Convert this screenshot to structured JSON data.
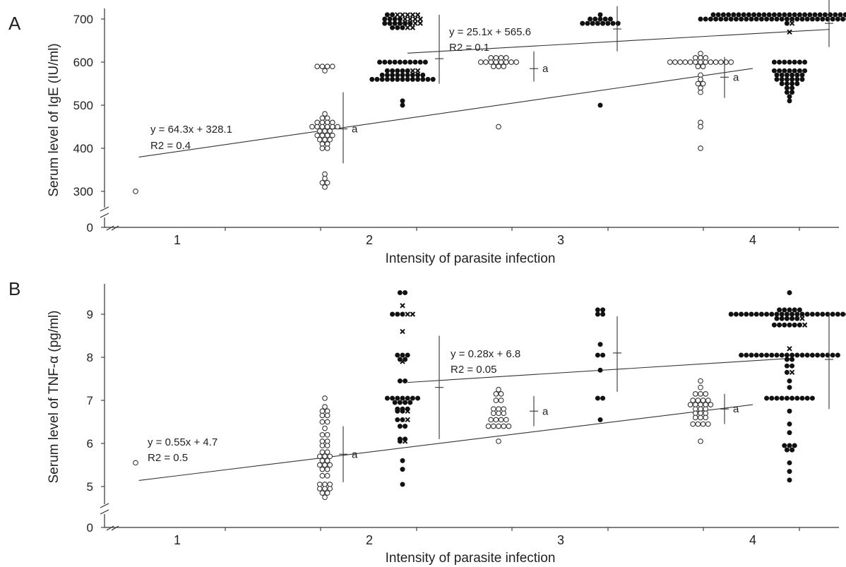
{
  "chart_data": [
    {
      "panel_label": "A",
      "type": "scatter",
      "xlabel": "Intensity of parasite infection",
      "ylabel": "Serum level of IgE (IU/ml)",
      "x_ticks": [
        "1",
        "2",
        "3",
        "4"
      ],
      "y_ticks": [
        "0",
        "300",
        "400",
        "500",
        "600",
        "700"
      ],
      "axis_break": true,
      "open_points": [
        {
          "group": 1,
          "value": 300,
          "count": 1
        },
        {
          "group": 2,
          "value": 590,
          "count": 4
        },
        {
          "group": 2,
          "value": 580,
          "count": 1
        },
        {
          "group": 2,
          "value": 480,
          "count": 1
        },
        {
          "group": 2,
          "value": 470,
          "count": 2
        },
        {
          "group": 2,
          "value": 460,
          "count": 4
        },
        {
          "group": 2,
          "value": 450,
          "count": 6
        },
        {
          "group": 2,
          "value": 440,
          "count": 3
        },
        {
          "group": 2,
          "value": 430,
          "count": 4
        },
        {
          "group": 2,
          "value": 420,
          "count": 3
        },
        {
          "group": 2,
          "value": 410,
          "count": 2
        },
        {
          "group": 2,
          "value": 400,
          "count": 2
        },
        {
          "group": 2,
          "value": 340,
          "count": 1
        },
        {
          "group": 2,
          "value": 330,
          "count": 1
        },
        {
          "group": 2,
          "value": 320,
          "count": 2
        },
        {
          "group": 2,
          "value": 310,
          "count": 1
        },
        {
          "group": 3,
          "value": 610,
          "count": 4
        },
        {
          "group": 3,
          "value": 600,
          "count": 8
        },
        {
          "group": 3,
          "value": 590,
          "count": 3
        },
        {
          "group": 3,
          "value": 450,
          "count": 1
        },
        {
          "group": 4,
          "value": 620,
          "count": 1
        },
        {
          "group": 4,
          "value": 610,
          "count": 3
        },
        {
          "group": 4,
          "value": 600,
          "count": 13
        },
        {
          "group": 4,
          "value": 590,
          "count": 2
        },
        {
          "group": 4,
          "value": 570,
          "count": 1
        },
        {
          "group": 4,
          "value": 560,
          "count": 1
        },
        {
          "group": 4,
          "value": 550,
          "count": 2
        },
        {
          "group": 4,
          "value": 540,
          "count": 1
        },
        {
          "group": 4,
          "value": 530,
          "count": 1
        },
        {
          "group": 4,
          "value": 460,
          "count": 1
        },
        {
          "group": 4,
          "value": 450,
          "count": 1
        },
        {
          "group": 4,
          "value": 400,
          "count": 1
        }
      ],
      "filled_points": [
        {
          "group": 2,
          "value": 710,
          "count": 7,
          "cross": 5
        },
        {
          "group": 2,
          "value": 700,
          "count": 8,
          "cross": 4
        },
        {
          "group": 2,
          "value": 690,
          "count": 8,
          "cross": 2
        },
        {
          "group": 2,
          "value": 680,
          "count": 5,
          "cross": 2
        },
        {
          "group": 2,
          "value": 600,
          "count": 10
        },
        {
          "group": 2,
          "value": 580,
          "count": 7,
          "cross": 2
        },
        {
          "group": 2,
          "value": 570,
          "count": 9
        },
        {
          "group": 2,
          "value": 560,
          "count": 13
        },
        {
          "group": 2,
          "value": 510,
          "count": 1
        },
        {
          "group": 2,
          "value": 500,
          "count": 1
        },
        {
          "group": 3,
          "value": 710,
          "count": 1
        },
        {
          "group": 3,
          "value": 700,
          "count": 5
        },
        {
          "group": 3,
          "value": 690,
          "count": 8
        },
        {
          "group": 3,
          "value": 500,
          "count": 1
        },
        {
          "group": 4,
          "value": 710,
          "count": 31,
          "cross": 4
        },
        {
          "group": 4,
          "value": 700,
          "count": 36
        },
        {
          "group": 4,
          "value": 690,
          "count": 2,
          "cross": 1
        },
        {
          "group": 4,
          "value": 670,
          "count": 1,
          "cross": 1
        },
        {
          "group": 4,
          "value": 600,
          "count": 7
        },
        {
          "group": 4,
          "value": 580,
          "count": 7
        },
        {
          "group": 4,
          "value": 570,
          "count": 6
        },
        {
          "group": 4,
          "value": 560,
          "count": 6
        },
        {
          "group": 4,
          "value": 550,
          "count": 4
        },
        {
          "group": 4,
          "value": 540,
          "count": 2
        },
        {
          "group": 4,
          "value": 530,
          "count": 2
        },
        {
          "group": 4,
          "value": 520,
          "count": 1
        },
        {
          "group": 4,
          "value": 510,
          "count": 1
        }
      ],
      "summary_bars": [
        {
          "group": 2,
          "series": "open",
          "mean": 445,
          "low": 365,
          "high": 530,
          "label": "a"
        },
        {
          "group": 2,
          "series": "filled",
          "mean": 608,
          "low": 550,
          "high": 710,
          "label": ""
        },
        {
          "group": 3,
          "series": "open",
          "mean": 585,
          "low": 555,
          "high": 625,
          "label": "a"
        },
        {
          "group": 3,
          "series": "filled",
          "mean": 677,
          "low": 625,
          "high": 730,
          "label": ""
        },
        {
          "group": 4,
          "series": "open",
          "mean": 565,
          "low": 517,
          "high": 612,
          "label": "a"
        },
        {
          "group": 4,
          "series": "filled",
          "mean": 690,
          "low": 635,
          "high": 745,
          "label": ""
        }
      ],
      "regression": [
        {
          "series": "open",
          "equation": "y = 64.3x + 328.1",
          "r2": "R2 = 0.4",
          "r2_value": 0.4,
          "slope": 64.3,
          "intercept": 328.1,
          "x_from": 0.8,
          "x_to": 4.0
        },
        {
          "series": "filled",
          "equation": "y = 25.1x + 565.6",
          "r2": "R2 = 0.1",
          "r2_value": 0.1,
          "slope": 25.1,
          "intercept": 565.6,
          "x_from": 2.2,
          "x_to": 4.4
        }
      ]
    },
    {
      "panel_label": "B",
      "type": "scatter",
      "xlabel": "Intensity of parasite infection",
      "ylabel": "Serum level of TNF-α (pg/ml)",
      "x_ticks": [
        "1",
        "2",
        "3",
        "4"
      ],
      "y_ticks": [
        "0",
        "5",
        "6",
        "7",
        "8",
        "9"
      ],
      "axis_break": true,
      "open_points": [
        {
          "group": 1,
          "value": 5.55,
          "count": 1
        },
        {
          "group": 2,
          "value": 7.05,
          "count": 1
        },
        {
          "group": 2,
          "value": 6.85,
          "count": 1
        },
        {
          "group": 2,
          "value": 6.75,
          "count": 2
        },
        {
          "group": 2,
          "value": 6.65,
          "count": 2
        },
        {
          "group": 2,
          "value": 6.5,
          "count": 2
        },
        {
          "group": 2,
          "value": 6.35,
          "count": 1
        },
        {
          "group": 2,
          "value": 6.2,
          "count": 2
        },
        {
          "group": 2,
          "value": 6.05,
          "count": 2
        },
        {
          "group": 2,
          "value": 5.95,
          "count": 2
        },
        {
          "group": 2,
          "value": 5.8,
          "count": 2
        },
        {
          "group": 2,
          "value": 5.7,
          "count": 3
        },
        {
          "group": 2,
          "value": 5.6,
          "count": 2
        },
        {
          "group": 2,
          "value": 5.5,
          "count": 3
        },
        {
          "group": 2,
          "value": 5.4,
          "count": 2
        },
        {
          "group": 2,
          "value": 5.25,
          "count": 2
        },
        {
          "group": 2,
          "value": 5.05,
          "count": 3
        },
        {
          "group": 2,
          "value": 4.95,
          "count": 3
        },
        {
          "group": 2,
          "value": 4.85,
          "count": 2
        },
        {
          "group": 2,
          "value": 4.75,
          "count": 1
        },
        {
          "group": 3,
          "value": 7.25,
          "count": 1
        },
        {
          "group": 3,
          "value": 7.15,
          "count": 2
        },
        {
          "group": 3,
          "value": 7.0,
          "count": 2
        },
        {
          "group": 3,
          "value": 6.8,
          "count": 3
        },
        {
          "group": 3,
          "value": 6.7,
          "count": 3
        },
        {
          "group": 3,
          "value": 6.55,
          "count": 4
        },
        {
          "group": 3,
          "value": 6.4,
          "count": 5
        },
        {
          "group": 3,
          "value": 6.05,
          "count": 1
        },
        {
          "group": 4,
          "value": 7.45,
          "count": 1
        },
        {
          "group": 4,
          "value": 7.3,
          "count": 1
        },
        {
          "group": 4,
          "value": 7.15,
          "count": 3
        },
        {
          "group": 4,
          "value": 7.0,
          "count": 4
        },
        {
          "group": 4,
          "value": 6.9,
          "count": 5
        },
        {
          "group": 4,
          "value": 6.8,
          "count": 3
        },
        {
          "group": 4,
          "value": 6.7,
          "count": 3
        },
        {
          "group": 4,
          "value": 6.6,
          "count": 3
        },
        {
          "group": 4,
          "value": 6.45,
          "count": 4
        },
        {
          "group": 4,
          "value": 6.05,
          "count": 1
        }
      ],
      "filled_points": [
        {
          "group": 2,
          "value": 9.5,
          "count": 2
        },
        {
          "group": 2,
          "value": 9.2,
          "count": 1,
          "cross": 1
        },
        {
          "group": 2,
          "value": 9.0,
          "count": 5,
          "cross": 2
        },
        {
          "group": 2,
          "value": 8.6,
          "count": 1,
          "cross": 1
        },
        {
          "group": 2,
          "value": 8.05,
          "count": 3
        },
        {
          "group": 2,
          "value": 7.95,
          "count": 2
        },
        {
          "group": 2,
          "value": 7.9,
          "count": 1,
          "cross": 1
        },
        {
          "group": 2,
          "value": 7.45,
          "count": 2
        },
        {
          "group": 2,
          "value": 7.05,
          "count": 7
        },
        {
          "group": 2,
          "value": 6.95,
          "count": 4
        },
        {
          "group": 2,
          "value": 6.8,
          "count": 3
        },
        {
          "group": 2,
          "value": 6.75,
          "count": 3,
          "cross": 1
        },
        {
          "group": 2,
          "value": 6.55,
          "count": 3,
          "cross": 1
        },
        {
          "group": 2,
          "value": 6.4,
          "count": 2
        },
        {
          "group": 2,
          "value": 6.1,
          "count": 2
        },
        {
          "group": 2,
          "value": 6.05,
          "count": 2,
          "cross": 1
        },
        {
          "group": 2,
          "value": 5.6,
          "count": 1
        },
        {
          "group": 2,
          "value": 5.4,
          "count": 1
        },
        {
          "group": 2,
          "value": 5.05,
          "count": 1
        },
        {
          "group": 3,
          "value": 9.1,
          "count": 2
        },
        {
          "group": 3,
          "value": 9.0,
          "count": 2
        },
        {
          "group": 3,
          "value": 8.3,
          "count": 1
        },
        {
          "group": 3,
          "value": 8.05,
          "count": 2
        },
        {
          "group": 3,
          "value": 7.7,
          "count": 1
        },
        {
          "group": 3,
          "value": 7.05,
          "count": 2
        },
        {
          "group": 3,
          "value": 6.55,
          "count": 1
        },
        {
          "group": 4,
          "value": 9.5,
          "count": 1
        },
        {
          "group": 4,
          "value": 9.1,
          "count": 5
        },
        {
          "group": 4,
          "value": 9.0,
          "count": 24
        },
        {
          "group": 4,
          "value": 8.9,
          "count": 6,
          "cross": 1
        },
        {
          "group": 4,
          "value": 8.75,
          "count": 7,
          "cross": 1
        },
        {
          "group": 4,
          "value": 8.2,
          "count": 1,
          "cross": 1
        },
        {
          "group": 4,
          "value": 8.05,
          "count": 20
        },
        {
          "group": 4,
          "value": 7.95,
          "count": 2
        },
        {
          "group": 4,
          "value": 7.8,
          "count": 2
        },
        {
          "group": 4,
          "value": 7.65,
          "count": 2,
          "cross": 1
        },
        {
          "group": 4,
          "value": 7.45,
          "count": 1
        },
        {
          "group": 4,
          "value": 7.3,
          "count": 1
        },
        {
          "group": 4,
          "value": 7.05,
          "count": 10
        },
        {
          "group": 4,
          "value": 6.75,
          "count": 1
        },
        {
          "group": 4,
          "value": 6.45,
          "count": 1
        },
        {
          "group": 4,
          "value": 6.25,
          "count": 1
        },
        {
          "group": 4,
          "value": 5.95,
          "count": 3
        },
        {
          "group": 4,
          "value": 5.85,
          "count": 2
        },
        {
          "group": 4,
          "value": 5.55,
          "count": 1
        },
        {
          "group": 4,
          "value": 5.35,
          "count": 1
        },
        {
          "group": 4,
          "value": 5.15,
          "count": 1
        }
      ],
      "summary_bars": [
        {
          "group": 2,
          "series": "open",
          "mean": 5.75,
          "low": 5.1,
          "high": 6.4,
          "label": "a"
        },
        {
          "group": 2,
          "series": "filled",
          "mean": 7.3,
          "low": 6.1,
          "high": 8.5,
          "label": ""
        },
        {
          "group": 3,
          "series": "open",
          "mean": 6.75,
          "low": 6.4,
          "high": 7.1,
          "label": "a"
        },
        {
          "group": 3,
          "series": "filled",
          "mean": 8.1,
          "low": 7.2,
          "high": 8.95,
          "label": ""
        },
        {
          "group": 4,
          "series": "open",
          "mean": 6.8,
          "low": 6.45,
          "high": 7.15,
          "label": "a"
        },
        {
          "group": 4,
          "series": "filled",
          "mean": 7.95,
          "low": 6.8,
          "high": 9.05,
          "label": ""
        }
      ],
      "regression": [
        {
          "series": "open",
          "equation": "y = 0.55x + 4.7",
          "r2": "R2 = 0.5",
          "r2_value": 0.5,
          "slope": 0.55,
          "intercept": 4.7,
          "x_from": 0.8,
          "x_to": 4.0
        },
        {
          "series": "filled",
          "equation": "y = 0.28x + 6.8",
          "r2": "R2 = 0.05",
          "r2_value": 0.05,
          "slope": 0.28,
          "intercept": 6.8,
          "x_from": 2.2,
          "x_to": 4.2
        }
      ]
    }
  ]
}
